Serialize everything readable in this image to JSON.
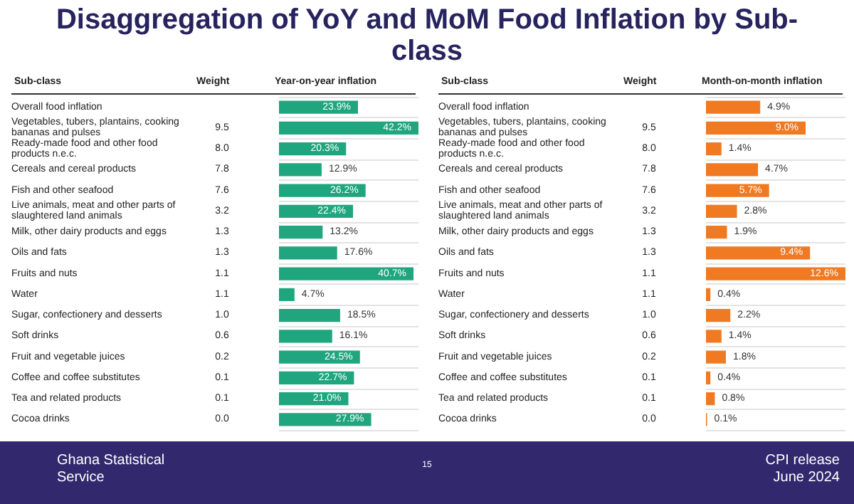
{
  "chart_data": [
    {
      "type": "bar",
      "orientation": "horizontal",
      "title": "Disaggregation of YoY and MoM Food Inflation by Sub-class",
      "ylabel": "Sub-class",
      "xlabel": "Year-on-year inflation",
      "grid": "y",
      "categories": [
        "Overall food inflation",
        "Vegetables, tubers, plantains, cooking bananas and pulses",
        "Ready-made food and other food products n.e.c.",
        "Cereals and cereal products",
        "Fish and other seafood",
        "Live animals, meat and other parts of slaughtered land animals",
        "Milk, other dairy products and eggs",
        "Oils and fats",
        "Fruits and nuts",
        "Water",
        "Sugar, confectionery and desserts",
        "Soft drinks",
        "Fruit and vegetable juices",
        "Coffee and coffee substitutes",
        "Tea and related products",
        "Cocoa drinks"
      ],
      "values": [
        23.9,
        42.2,
        20.3,
        12.9,
        26.2,
        22.4,
        13.2,
        17.6,
        40.7,
        4.7,
        18.5,
        16.1,
        24.5,
        22.7,
        21.0,
        27.9
      ],
      "value_labels": [
        "23.9%",
        "42.2%",
        "20.3%",
        "12.9%",
        "26.2%",
        "22.4%",
        "13.2%",
        "17.6%",
        "40.7%",
        "4.7%",
        "18.5%",
        "16.1%",
        "24.5%",
        "22.7%",
        "21.0%",
        "27.9%"
      ],
      "color": "#1fa67f",
      "annotations": [
        "Weight",
        "9.5",
        "8.0",
        "7.8",
        "7.6",
        "3.2",
        "1.3",
        "1.3",
        "1.1",
        "1.1",
        "1.0",
        "0.6",
        "0.2",
        "0.1",
        "0.1",
        "0.0",
        "Ghana Statistical Service",
        "15",
        "CPI release June 2024"
      ]
    },
    {
      "type": "bar",
      "orientation": "horizontal",
      "ylabel": "Sub-class",
      "xlabel": "Month-on-month inflation",
      "grid": "y",
      "categories": [
        "Overall food inflation",
        "Vegetables, tubers, plantains, cooking bananas and pulses",
        "Ready-made food and other food products n.e.c.",
        "Cereals and cereal products",
        "Fish and other seafood",
        "Live animals, meat and other parts of slaughtered land animals",
        "Milk, other dairy products and eggs",
        "Oils and fats",
        "Fruits and nuts",
        "Water",
        "Sugar, confectionery and desserts",
        "Soft drinks",
        "Fruit and vegetable juices",
        "Coffee and coffee substitutes",
        "Tea and related products",
        "Cocoa drinks"
      ],
      "values": [
        4.9,
        9.0,
        1.4,
        4.7,
        5.7,
        2.8,
        1.9,
        9.4,
        12.6,
        0.4,
        2.2,
        1.4,
        1.8,
        0.4,
        0.8,
        0.1
      ],
      "value_labels": [
        "4.9%",
        "9.0%",
        "1.4%",
        "4.7%",
        "5.7%",
        "2.8%",
        "1.9%",
        "9.4%",
        "12.6%",
        "0.4%",
        "2.2%",
        "1.4%",
        "1.8%",
        "0.4%",
        "0.8%",
        "0.1%"
      ],
      "color": "#f07a22",
      "annotations": [
        "Weight",
        "9.5",
        "8.0",
        "7.8",
        "7.6",
        "3.2",
        "1.3",
        "1.3",
        "1.1",
        "1.1",
        "1.0",
        "0.6",
        "0.2",
        "0.1",
        "0.1",
        "0.0"
      ]
    }
  ]
}
